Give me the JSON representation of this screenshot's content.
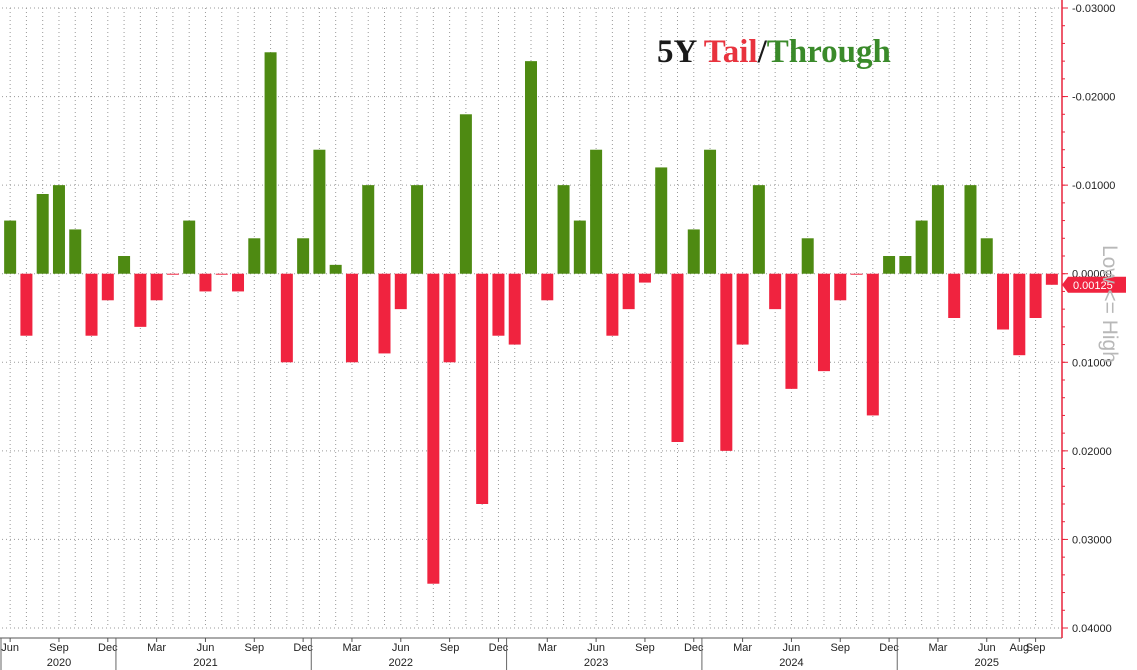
{
  "chart_data": {
    "type": "bar",
    "title": {
      "parts": [
        {
          "text": "5Y ",
          "color": "#1a1a1a"
        },
        {
          "text": "Tail",
          "color": "#e8333e"
        },
        {
          "text": "/",
          "color": "#1a1a1a"
        },
        {
          "text": "Through",
          "color": "#3a8a2a"
        }
      ]
    },
    "ylabel": "Low <= High",
    "y_axis": {
      "position": "right",
      "inverted": true,
      "ylim": [
        -0.03,
        0.04
      ],
      "ticks": [
        {
          "value": -0.03,
          "label": "-0.03000"
        },
        {
          "value": -0.02,
          "label": "-0.02000"
        },
        {
          "value": -0.01,
          "label": "-0.01000"
        },
        {
          "value": 0.0,
          "label": "0.00000"
        },
        {
          "value": 0.01,
          "label": "0.01000"
        },
        {
          "value": 0.02,
          "label": "0.02000"
        },
        {
          "value": 0.03,
          "label": "0.03000"
        },
        {
          "value": 0.04,
          "label": "0.04000"
        }
      ]
    },
    "last_value_label": "0.00125",
    "colors": {
      "through": "#4e8a12",
      "tail": "#f0233f",
      "axis": "#e8233b",
      "grid": "#9a9a9a"
    },
    "grid": true,
    "x_axis": {
      "month_labels": [
        {
          "label": "Jun",
          "index": 0
        },
        {
          "label": "Sep",
          "index": 3
        },
        {
          "label": "Dec",
          "index": 6
        },
        {
          "label": "Mar",
          "index": 9
        },
        {
          "label": "Jun",
          "index": 12
        },
        {
          "label": "Sep",
          "index": 15
        },
        {
          "label": "Dec",
          "index": 18
        },
        {
          "label": "Mar",
          "index": 21
        },
        {
          "label": "Jun",
          "index": 24
        },
        {
          "label": "Sep",
          "index": 27
        },
        {
          "label": "Dec",
          "index": 30
        },
        {
          "label": "Mar",
          "index": 33
        },
        {
          "label": "Jun",
          "index": 36
        },
        {
          "label": "Sep",
          "index": 39
        },
        {
          "label": "Dec",
          "index": 42
        },
        {
          "label": "Mar",
          "index": 45
        },
        {
          "label": "Jun",
          "index": 48
        },
        {
          "label": "Sep",
          "index": 51
        },
        {
          "label": "Dec",
          "index": 54
        },
        {
          "label": "Mar",
          "index": 57
        },
        {
          "label": "Jun",
          "index": 60
        },
        {
          "label": "Aug",
          "index": 62
        },
        {
          "label": "Sep",
          "index": 63
        }
      ],
      "year_labels": [
        {
          "label": "2020",
          "center": 3
        },
        {
          "label": "2021",
          "center": 12
        },
        {
          "label": "2022",
          "center": 24
        },
        {
          "label": "2023",
          "center": 36
        },
        {
          "label": "2024",
          "center": 48
        },
        {
          "label": "2025",
          "center": 60
        }
      ],
      "year_boundaries": [
        6.5,
        18.5,
        30.5,
        42.5,
        54.5
      ]
    },
    "values": [
      -0.006,
      0.007,
      -0.009,
      -0.01,
      -0.005,
      0.007,
      0.003,
      -0.002,
      0.006,
      0.003,
      0.0,
      -0.006,
      0.002,
      0.0,
      0.002,
      -0.004,
      -0.025,
      0.01,
      -0.004,
      -0.014,
      -0.001,
      0.01,
      -0.01,
      0.009,
      0.004,
      -0.01,
      0.035,
      0.01,
      -0.018,
      0.026,
      0.007,
      0.008,
      -0.024,
      0.003,
      -0.01,
      -0.006,
      -0.014,
      0.007,
      0.004,
      0.001,
      -0.012,
      0.019,
      -0.005,
      -0.014,
      0.02,
      0.008,
      -0.01,
      0.004,
      0.013,
      -0.004,
      0.011,
      0.003,
      0.0,
      0.016,
      -0.002,
      -0.002,
      -0.006,
      -0.01,
      0.005,
      -0.01,
      -0.004,
      0.0063,
      0.0092,
      0.005,
      0.00125
    ]
  }
}
